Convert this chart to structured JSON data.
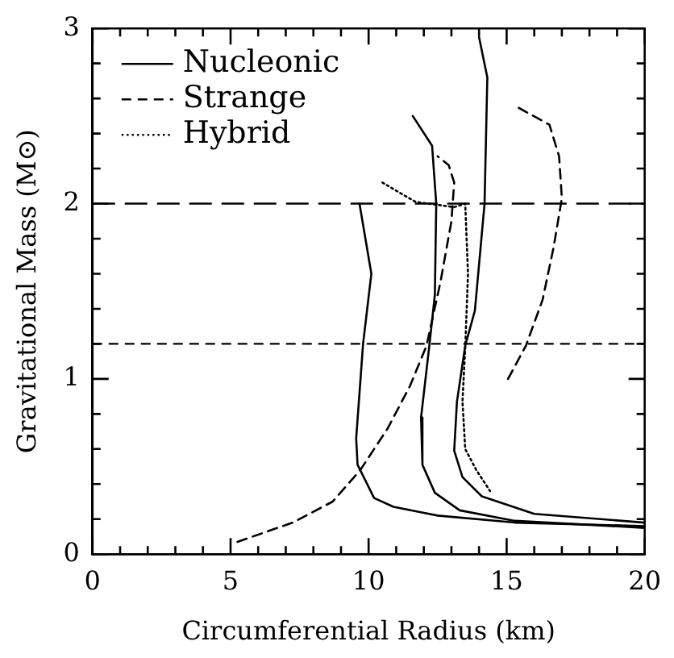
{
  "chart_data": {
    "type": "line",
    "xlabel": "Circumferential Radius (km)",
    "ylabel": "Gravitational Mass (M⊙)",
    "xlim": [
      0,
      20
    ],
    "ylim": [
      0,
      3
    ],
    "xticks": [
      0,
      {
        "value": 1,
        "label": null
      },
      {
        "value": 2,
        "label": null
      },
      {
        "value": 3,
        "label": null
      },
      {
        "value": 4,
        "label": null
      },
      5,
      {
        "value": 6,
        "label": null
      },
      {
        "value": 7,
        "label": null
      },
      {
        "value": 8,
        "label": null
      },
      {
        "value": 9,
        "label": null
      },
      10,
      {
        "value": 11,
        "label": null
      },
      {
        "value": 12,
        "label": null
      },
      {
        "value": 13,
        "label": null
      },
      {
        "value": 14,
        "label": null
      },
      15,
      {
        "value": 16,
        "label": null
      },
      {
        "value": 17,
        "label": null
      },
      {
        "value": 18,
        "label": null
      },
      {
        "value": 19,
        "label": null
      },
      20
    ],
    "yticks": [
      0,
      {
        "value": 0.2,
        "label": null
      },
      {
        "value": 0.4,
        "label": null
      },
      {
        "value": 0.6,
        "label": null
      },
      {
        "value": 0.8,
        "label": null
      },
      1,
      {
        "value": 1.2,
        "label": null
      },
      {
        "value": 1.4,
        "label": null
      },
      {
        "value": 1.6,
        "label": null
      },
      {
        "value": 1.8,
        "label": null
      },
      2,
      {
        "value": 2.2,
        "label": null
      },
      {
        "value": 2.4,
        "label": null
      },
      {
        "value": 2.6,
        "label": null
      },
      {
        "value": 2.8,
        "label": null
      },
      3
    ],
    "grid": false,
    "legend": "top left",
    "marker": "none",
    "series": [
      {
        "name": "Nucleonic",
        "color": "#000000",
        "line_style": "solid",
        "x": [
          9.67,
          10.1,
          9.8,
          9.55,
          9.6,
          10.2,
          10.9,
          12.5,
          15.3,
          20
        ],
        "values": [
          2.0,
          1.6,
          1.2,
          0.66,
          0.51,
          0.32,
          0.27,
          0.22,
          0.18,
          0.16
        ]
      },
      {
        "color": "#000000",
        "line_style": "solid",
        "x": [
          11.6,
          12.3,
          12.45,
          12.4,
          12.2,
          11.9,
          11.95,
          12.4,
          13.3,
          15.3,
          20
        ],
        "values": [
          2.5,
          2.33,
          2.0,
          1.48,
          1.19,
          0.78,
          0.51,
          0.35,
          0.25,
          0.19,
          0.15
        ]
      },
      {
        "color": "#000000",
        "line_style": "solid",
        "x": [
          14.0,
          14.3,
          14.2,
          13.85,
          13.5,
          13.2,
          13.1,
          13.4,
          14.1,
          16.0,
          20
        ],
        "values": [
          2.95,
          2.72,
          2.0,
          1.39,
          1.19,
          0.87,
          0.59,
          0.44,
          0.33,
          0.23,
          0.18
        ]
      },
      {
        "name": "Strange",
        "color": "#000000",
        "line_style": "dashed",
        "x": [
          5.25,
          7.25,
          8.7,
          9.7,
          10.7,
          11.5,
          12.1,
          12.6,
          13.0,
          13.1,
          12.9,
          12.5
        ],
        "values": [
          0.07,
          0.18,
          0.3,
          0.48,
          0.72,
          0.96,
          1.19,
          1.55,
          1.9,
          2.12,
          2.22,
          2.27
        ]
      },
      {
        "color": "#000000",
        "line_style": "dashed",
        "x": [
          15.05,
          15.7,
          16.3,
          16.7,
          17.0,
          16.9,
          16.55,
          15.4
        ],
        "values": [
          1.0,
          1.19,
          1.45,
          1.75,
          2.03,
          2.27,
          2.45,
          2.55
        ]
      },
      {
        "name": "Hybrid",
        "color": "#000000",
        "line_style": "dotted",
        "x": [
          10.5,
          11.7,
          13.1,
          13.5,
          13.6,
          13.5,
          13.4,
          13.5,
          13.9,
          14.4
        ],
        "values": [
          2.12,
          2.01,
          1.98,
          2.0,
          1.6,
          1.18,
          0.87,
          0.6,
          0.48,
          0.36
        ]
      }
    ],
    "ref_lines": [
      {
        "axis": "y",
        "value": 2,
        "color": "#000000",
        "line_style": "dashed"
      },
      {
        "axis": "y",
        "value": 1.2,
        "color": "#000000",
        "line_style": "dashed"
      }
    ]
  }
}
